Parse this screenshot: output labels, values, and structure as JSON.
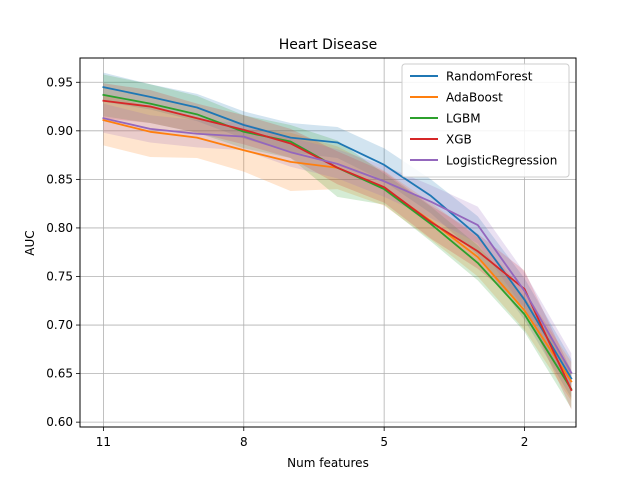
{
  "chart_data": {
    "type": "line",
    "title": "Heart Disease",
    "xlabel": "Num features",
    "ylabel": "AUC",
    "x_reversed": true,
    "xlim": [
      0.9,
      11.5
    ],
    "ylim": [
      0.595,
      0.975
    ],
    "x_ticks": [
      11,
      8,
      5,
      2
    ],
    "x_tick_labels": [
      "11",
      "8",
      "5",
      "2"
    ],
    "y_ticks": [
      0.6,
      0.65,
      0.7,
      0.75,
      0.8,
      0.85,
      0.9,
      0.95
    ],
    "y_tick_labels": [
      "0.60",
      "0.65",
      "0.70",
      "0.75",
      "0.80",
      "0.85",
      "0.90",
      "0.95"
    ],
    "grid": true,
    "legend_position": "top-right",
    "x": [
      11,
      10,
      9,
      8,
      7,
      6,
      5,
      4,
      3,
      2,
      1
    ],
    "series": [
      {
        "name": "RandomForest",
        "color": "#1f77b4",
        "values": [
          0.945,
          0.935,
          0.924,
          0.906,
          0.893,
          0.888,
          0.865,
          0.833,
          0.792,
          0.726,
          0.645
        ],
        "lower": [
          0.93,
          0.922,
          0.91,
          0.892,
          0.878,
          0.872,
          0.848,
          0.815,
          0.772,
          0.705,
          0.625
        ],
        "upper": [
          0.96,
          0.948,
          0.938,
          0.92,
          0.908,
          0.904,
          0.882,
          0.85,
          0.812,
          0.748,
          0.665
        ]
      },
      {
        "name": "AdaBoost",
        "color": "#ff7f0e",
        "values": [
          0.911,
          0.899,
          0.893,
          0.88,
          0.868,
          0.862,
          0.841,
          0.807,
          0.77,
          0.715,
          0.642
        ],
        "lower": [
          0.885,
          0.873,
          0.872,
          0.858,
          0.838,
          0.84,
          0.823,
          0.788,
          0.75,
          0.695,
          0.622
        ],
        "upper": [
          0.937,
          0.925,
          0.914,
          0.902,
          0.898,
          0.884,
          0.859,
          0.826,
          0.79,
          0.735,
          0.662
        ]
      },
      {
        "name": "LGBM",
        "color": "#2ca02c",
        "values": [
          0.937,
          0.928,
          0.917,
          0.899,
          0.889,
          0.862,
          0.84,
          0.804,
          0.764,
          0.711,
          0.634
        ],
        "lower": [
          0.915,
          0.908,
          0.898,
          0.882,
          0.872,
          0.832,
          0.824,
          0.786,
          0.746,
          0.693,
          0.614
        ],
        "upper": [
          0.958,
          0.948,
          0.936,
          0.916,
          0.906,
          0.89,
          0.856,
          0.822,
          0.782,
          0.729,
          0.654
        ]
      },
      {
        "name": "XGB",
        "color": "#d62728",
        "values": [
          0.931,
          0.925,
          0.913,
          0.901,
          0.887,
          0.862,
          0.842,
          0.806,
          0.776,
          0.737,
          0.633
        ],
        "lower": [
          0.913,
          0.908,
          0.898,
          0.886,
          0.872,
          0.845,
          0.826,
          0.789,
          0.758,
          0.718,
          0.613
        ],
        "upper": [
          0.949,
          0.942,
          0.928,
          0.916,
          0.902,
          0.879,
          0.858,
          0.823,
          0.794,
          0.756,
          0.653
        ]
      },
      {
        "name": "LogisticRegression",
        "color": "#9467bd",
        "values": [
          0.913,
          0.902,
          0.897,
          0.894,
          0.878,
          0.866,
          0.848,
          0.827,
          0.803,
          0.735,
          0.651
        ],
        "lower": [
          0.898,
          0.888,
          0.883,
          0.88,
          0.863,
          0.851,
          0.832,
          0.81,
          0.784,
          0.716,
          0.631
        ],
        "upper": [
          0.928,
          0.916,
          0.911,
          0.908,
          0.893,
          0.881,
          0.864,
          0.844,
          0.822,
          0.754,
          0.671
        ]
      }
    ]
  }
}
